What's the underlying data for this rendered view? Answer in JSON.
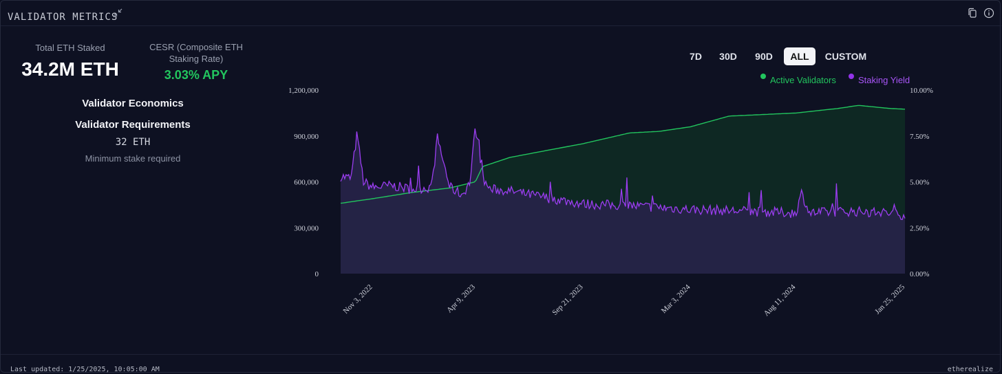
{
  "header": {
    "title": "VALIDATOR METRICS",
    "collapse_icon": "collapse-icon",
    "copy_icon": "copy-icon",
    "info_icon": "info-icon"
  },
  "stats": {
    "total_label": "Total ETH Staked",
    "total_value": "34.2M ETH",
    "cesr_label_line1": "CESR (Composite ETH",
    "cesr_label_line2": "Staking Rate)",
    "cesr_value": "3.03% APY"
  },
  "economics": {
    "title": "Validator Economics",
    "requirements_title": "Validator Requirements",
    "min_stake": "32 ETH",
    "min_stake_note": "Minimum stake required"
  },
  "range_buttons": [
    "7D",
    "30D",
    "90D",
    "ALL",
    "CUSTOM"
  ],
  "active_range": "ALL",
  "colors": {
    "validators": "#22c55e",
    "yield": "#9333ea",
    "background": "#0e1122"
  },
  "chart_data": {
    "type": "area",
    "legend": [
      "Active Validators",
      "Staking Yield"
    ],
    "legend_placement": "top-right",
    "x_ticks": [
      "Nov 3, 2022",
      "Apr 9, 2023",
      "Sep 21, 2023",
      "Mar 3, 2024",
      "Aug 11, 2024",
      "Jan 25, 2025"
    ],
    "x_range": [
      "2022-09-15",
      "2025-01-25"
    ],
    "y_left": {
      "ticks": [
        "0",
        "300,000",
        "600,000",
        "900,000",
        "1,200,000"
      ],
      "range": [
        0,
        1200000
      ]
    },
    "y_right": {
      "ticks": [
        "0.00%",
        "2.50%",
        "5.00%",
        "7.50%",
        "10.00%"
      ],
      "range": [
        0,
        10
      ]
    },
    "series": [
      {
        "name": "Active Validators",
        "axis": "left",
        "dates": [
          "2022-09-15",
          "2022-11-03",
          "2023-01-01",
          "2023-03-01",
          "2023-04-09",
          "2023-04-20",
          "2023-06-01",
          "2023-09-21",
          "2023-12-01",
          "2024-01-15",
          "2024-03-03",
          "2024-05-01",
          "2024-08-11",
          "2024-10-15",
          "2024-11-15",
          "2025-01-01",
          "2025-01-25"
        ],
        "values": [
          460000,
          490000,
          530000,
          560000,
          600000,
          700000,
          760000,
          850000,
          920000,
          930000,
          960000,
          1030000,
          1050000,
          1080000,
          1100000,
          1080000,
          1075000
        ]
      },
      {
        "name": "Staking Yield",
        "axis": "right",
        "unit": "%",
        "dates": [
          "2022-09-15",
          "2022-10-01",
          "2022-10-10",
          "2022-10-20",
          "2022-11-03",
          "2022-12-01",
          "2023-01-01",
          "2023-02-01",
          "2023-02-10",
          "2023-03-01",
          "2023-03-20",
          "2023-04-01",
          "2023-04-09",
          "2023-04-15",
          "2023-04-20",
          "2023-05-01",
          "2023-06-01",
          "2023-07-01",
          "2023-09-21",
          "2023-12-01",
          "2024-03-03",
          "2024-06-01",
          "2024-08-11",
          "2024-08-20",
          "2024-09-01",
          "2024-11-01",
          "2025-01-01",
          "2025-01-25"
        ],
        "values": [
          5.3,
          5.2,
          7.6,
          5.0,
          4.7,
          4.8,
          4.6,
          4.7,
          7.4,
          4.7,
          4.3,
          5.0,
          8.0,
          6.8,
          5.2,
          4.6,
          4.5,
          4.3,
          3.8,
          3.7,
          3.5,
          3.4,
          3.3,
          4.4,
          3.3,
          3.4,
          3.3,
          3.2
        ]
      }
    ]
  },
  "footer": {
    "last_updated": "Last updated: 1/25/2025, 10:05:00 AM",
    "brand": "etherealize"
  }
}
